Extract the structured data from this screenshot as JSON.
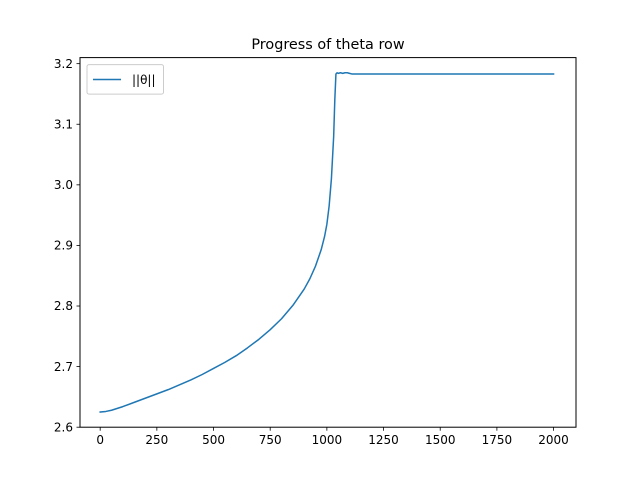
{
  "chart_data": {
    "type": "line",
    "title": "Progress of theta row",
    "xlabel": "",
    "ylabel": "",
    "xlim": [
      -89,
      2099
    ],
    "ylim": [
      2.6,
      3.21
    ],
    "x_ticks": [
      0,
      250,
      500,
      750,
      1000,
      1250,
      1500,
      1750,
      2000
    ],
    "x_tick_labels": [
      "0",
      "250",
      "500",
      "750",
      "1000",
      "1250",
      "1500",
      "1750",
      "2000"
    ],
    "y_ticks": [
      2.6,
      2.7,
      2.8,
      2.9,
      3.0,
      3.1,
      3.2
    ],
    "y_tick_labels": [
      "2.6",
      "2.7",
      "2.8",
      "2.9",
      "3.0",
      "3.1",
      "3.2"
    ],
    "grid": false,
    "legend_position": "upper left",
    "series": [
      {
        "name": "||θ||",
        "color": "#1f77b4",
        "x": [
          0,
          25,
          50,
          100,
          150,
          200,
          250,
          300,
          350,
          400,
          450,
          500,
          550,
          600,
          650,
          700,
          750,
          800,
          850,
          900,
          925,
          950,
          975,
          990,
          1000,
          1010,
          1020,
          1030,
          1035,
          1040,
          1045,
          1050,
          1060,
          1070,
          1080,
          1090,
          1100,
          1110,
          1125,
          1200,
          1400,
          1600,
          1800,
          2000
        ],
        "y": [
          2.625,
          2.626,
          2.628,
          2.634,
          2.641,
          2.648,
          2.655,
          2.662,
          2.67,
          2.678,
          2.687,
          2.697,
          2.707,
          2.718,
          2.731,
          2.745,
          2.761,
          2.779,
          2.801,
          2.828,
          2.845,
          2.866,
          2.893,
          2.915,
          2.935,
          2.965,
          3.01,
          3.08,
          3.14,
          3.183,
          3.185,
          3.184,
          3.185,
          3.184,
          3.185,
          3.185,
          3.184,
          3.183,
          3.183,
          3.183,
          3.183,
          3.183,
          3.183,
          3.183
        ]
      }
    ]
  }
}
